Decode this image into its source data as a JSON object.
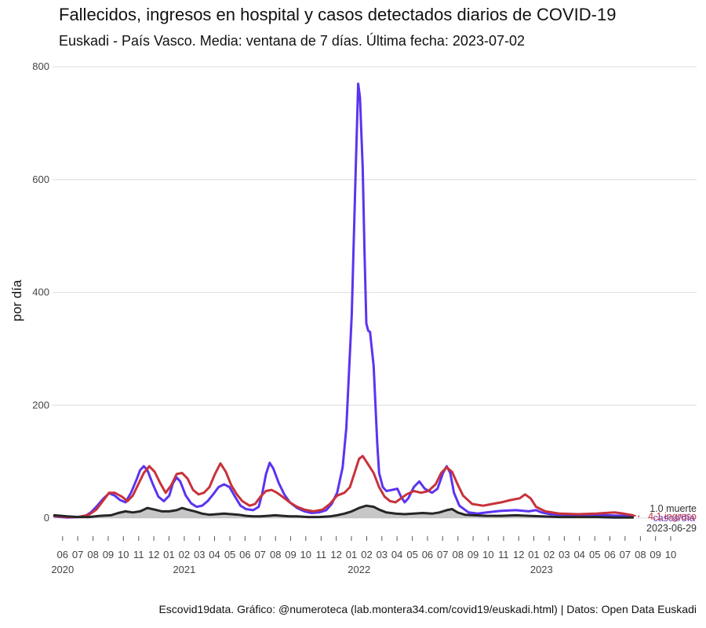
{
  "title": "Fallecidos, ingresos en hospital y casos detectados diarios de COVID-19",
  "subtitle": "Euskadi - País Vasco. Media: ventana de 7 días. Última fecha: 2023-07-02",
  "caption": "Escovid19data. Gráfico: @numeroteca (lab.montera34.com/covid19/euskadi.html) | Datos: Open Data Euskadi",
  "colors": {
    "casos": "#5b34f0",
    "ingresos": "#c8323a",
    "fallecidos": "#262626",
    "area": "#bdbdbd",
    "grid": "#e3e3e3"
  },
  "chart_data": {
    "type": "line",
    "title": "Fallecidos, ingresos en hospital y casos detectados diarios de COVID-19",
    "ylabel": "por día",
    "xlabel": "",
    "ylim": [
      0,
      800
    ],
    "xlim": [
      2020.32,
      2023.85
    ],
    "y_ticks": [
      0,
      200,
      400,
      600,
      800
    ],
    "x_month_ticks": [
      {
        "x": 2020.375,
        "label": "06"
      },
      {
        "x": 2020.458,
        "label": "07"
      },
      {
        "x": 2020.542,
        "label": "08"
      },
      {
        "x": 2020.625,
        "label": "09"
      },
      {
        "x": 2020.708,
        "label": "10"
      },
      {
        "x": 2020.792,
        "label": "11"
      },
      {
        "x": 2020.875,
        "label": "12"
      },
      {
        "x": 2020.958,
        "label": "01"
      },
      {
        "x": 2021.042,
        "label": "02"
      },
      {
        "x": 2021.125,
        "label": "03"
      },
      {
        "x": 2021.208,
        "label": "04"
      },
      {
        "x": 2021.292,
        "label": "05"
      },
      {
        "x": 2021.375,
        "label": "06"
      },
      {
        "x": 2021.458,
        "label": "07"
      },
      {
        "x": 2021.542,
        "label": "08"
      },
      {
        "x": 2021.625,
        "label": "09"
      },
      {
        "x": 2021.708,
        "label": "10"
      },
      {
        "x": 2021.792,
        "label": "11"
      },
      {
        "x": 2021.875,
        "label": "12"
      },
      {
        "x": 2021.958,
        "label": "01"
      },
      {
        "x": 2022.042,
        "label": "02"
      },
      {
        "x": 2022.125,
        "label": "03"
      },
      {
        "x": 2022.208,
        "label": "04"
      },
      {
        "x": 2022.292,
        "label": "05"
      },
      {
        "x": 2022.375,
        "label": "06"
      },
      {
        "x": 2022.458,
        "label": "07"
      },
      {
        "x": 2022.542,
        "label": "08"
      },
      {
        "x": 2022.625,
        "label": "09"
      },
      {
        "x": 2022.708,
        "label": "10"
      },
      {
        "x": 2022.792,
        "label": "11"
      },
      {
        "x": 2022.875,
        "label": "12"
      },
      {
        "x": 2022.958,
        "label": "01"
      },
      {
        "x": 2023.042,
        "label": "02"
      },
      {
        "x": 2023.125,
        "label": "03"
      },
      {
        "x": 2023.208,
        "label": "04"
      },
      {
        "x": 2023.292,
        "label": "05"
      },
      {
        "x": 2023.375,
        "label": "06"
      },
      {
        "x": 2023.458,
        "label": "07"
      },
      {
        "x": 2023.542,
        "label": "08"
      },
      {
        "x": 2023.625,
        "label": "09"
      },
      {
        "x": 2023.708,
        "label": "10"
      }
    ],
    "x_year_ticks": [
      {
        "x": 2020.375,
        "label": "2020"
      },
      {
        "x": 2021.042,
        "label": "2021"
      },
      {
        "x": 2022.0,
        "label": "2022"
      },
      {
        "x": 2023.0,
        "label": "2023"
      }
    ],
    "series": [
      {
        "name": "casos",
        "color": "#5b34f0",
        "points": [
          [
            2020.33,
            3
          ],
          [
            2020.4,
            1
          ],
          [
            2020.46,
            2
          ],
          [
            2020.5,
            4
          ],
          [
            2020.53,
            10
          ],
          [
            2020.56,
            20
          ],
          [
            2020.6,
            35
          ],
          [
            2020.63,
            44
          ],
          [
            2020.66,
            40
          ],
          [
            2020.69,
            32
          ],
          [
            2020.72,
            28
          ],
          [
            2020.75,
            45
          ],
          [
            2020.78,
            68
          ],
          [
            2020.8,
            85
          ],
          [
            2020.82,
            92
          ],
          [
            2020.84,
            85
          ],
          [
            2020.87,
            60
          ],
          [
            2020.9,
            38
          ],
          [
            2020.93,
            30
          ],
          [
            2020.96,
            40
          ],
          [
            2020.98,
            62
          ],
          [
            2021.0,
            72
          ],
          [
            2021.02,
            65
          ],
          [
            2021.05,
            40
          ],
          [
            2021.08,
            26
          ],
          [
            2021.11,
            20
          ],
          [
            2021.14,
            22
          ],
          [
            2021.17,
            30
          ],
          [
            2021.2,
            42
          ],
          [
            2021.23,
            55
          ],
          [
            2021.26,
            60
          ],
          [
            2021.29,
            55
          ],
          [
            2021.32,
            38
          ],
          [
            2021.35,
            22
          ],
          [
            2021.38,
            16
          ],
          [
            2021.42,
            14
          ],
          [
            2021.45,
            20
          ],
          [
            2021.47,
            45
          ],
          [
            2021.49,
            78
          ],
          [
            2021.51,
            98
          ],
          [
            2021.53,
            88
          ],
          [
            2021.56,
            62
          ],
          [
            2021.59,
            42
          ],
          [
            2021.62,
            28
          ],
          [
            2021.66,
            18
          ],
          [
            2021.7,
            12
          ],
          [
            2021.74,
            9
          ],
          [
            2021.78,
            10
          ],
          [
            2021.82,
            14
          ],
          [
            2021.85,
            25
          ],
          [
            2021.88,
            45
          ],
          [
            2021.91,
            90
          ],
          [
            2021.93,
            160
          ],
          [
            2021.96,
            360
          ],
          [
            2021.98,
            600
          ],
          [
            2021.995,
            770
          ],
          [
            2022.005,
            745
          ],
          [
            2022.02,
            620
          ],
          [
            2022.03,
            470
          ],
          [
            2022.04,
            345
          ],
          [
            2022.05,
            332
          ],
          [
            2022.06,
            330
          ],
          [
            2022.08,
            270
          ],
          [
            2022.1,
            130
          ],
          [
            2022.11,
            80
          ],
          [
            2022.13,
            55
          ],
          [
            2022.15,
            48
          ],
          [
            2022.18,
            50
          ],
          [
            2022.21,
            52
          ],
          [
            2022.23,
            38
          ],
          [
            2022.25,
            28
          ],
          [
            2022.27,
            35
          ],
          [
            2022.3,
            55
          ],
          [
            2022.33,
            65
          ],
          [
            2022.36,
            52
          ],
          [
            2022.4,
            45
          ],
          [
            2022.43,
            52
          ],
          [
            2022.46,
            80
          ],
          [
            2022.48,
            92
          ],
          [
            2022.5,
            80
          ],
          [
            2022.52,
            45
          ],
          [
            2022.55,
            22
          ],
          [
            2022.6,
            10
          ],
          [
            2022.65,
            8
          ],
          [
            2022.7,
            10
          ],
          [
            2022.78,
            13
          ],
          [
            2022.86,
            14
          ],
          [
            2022.93,
            12
          ],
          [
            2022.97,
            14
          ],
          [
            2023.0,
            10
          ],
          [
            2023.05,
            7
          ],
          [
            2023.15,
            5
          ],
          [
            2023.25,
            4
          ],
          [
            2023.35,
            5
          ],
          [
            2023.45,
            4
          ],
          [
            2023.5,
            3
          ]
        ]
      },
      {
        "name": "ingresos",
        "color": "#c8323a",
        "points": [
          [
            2020.33,
            4
          ],
          [
            2020.4,
            2
          ],
          [
            2020.46,
            2
          ],
          [
            2020.52,
            6
          ],
          [
            2020.56,
            15
          ],
          [
            2020.6,
            32
          ],
          [
            2020.63,
            45
          ],
          [
            2020.66,
            45
          ],
          [
            2020.7,
            38
          ],
          [
            2020.73,
            30
          ],
          [
            2020.76,
            40
          ],
          [
            2020.79,
            60
          ],
          [
            2020.82,
            80
          ],
          [
            2020.85,
            92
          ],
          [
            2020.88,
            82
          ],
          [
            2020.91,
            62
          ],
          [
            2020.94,
            45
          ],
          [
            2020.97,
            58
          ],
          [
            2021.0,
            78
          ],
          [
            2021.03,
            80
          ],
          [
            2021.06,
            70
          ],
          [
            2021.09,
            50
          ],
          [
            2021.12,
            42
          ],
          [
            2021.15,
            45
          ],
          [
            2021.18,
            55
          ],
          [
            2021.21,
            78
          ],
          [
            2021.24,
            97
          ],
          [
            2021.27,
            82
          ],
          [
            2021.3,
            58
          ],
          [
            2021.33,
            42
          ],
          [
            2021.36,
            30
          ],
          [
            2021.4,
            22
          ],
          [
            2021.43,
            25
          ],
          [
            2021.46,
            38
          ],
          [
            2021.49,
            48
          ],
          [
            2021.52,
            50
          ],
          [
            2021.55,
            45
          ],
          [
            2021.58,
            38
          ],
          [
            2021.62,
            28
          ],
          [
            2021.66,
            20
          ],
          [
            2021.7,
            15
          ],
          [
            2021.75,
            12
          ],
          [
            2021.8,
            15
          ],
          [
            2021.84,
            25
          ],
          [
            2021.88,
            40
          ],
          [
            2021.92,
            45
          ],
          [
            2021.95,
            55
          ],
          [
            2021.98,
            85
          ],
          [
            2022.0,
            105
          ],
          [
            2022.02,
            110
          ],
          [
            2022.05,
            95
          ],
          [
            2022.08,
            80
          ],
          [
            2022.11,
            55
          ],
          [
            2022.14,
            38
          ],
          [
            2022.17,
            30
          ],
          [
            2022.2,
            28
          ],
          [
            2022.23,
            35
          ],
          [
            2022.26,
            42
          ],
          [
            2022.3,
            48
          ],
          [
            2022.34,
            45
          ],
          [
            2022.38,
            48
          ],
          [
            2022.42,
            60
          ],
          [
            2022.45,
            80
          ],
          [
            2022.48,
            90
          ],
          [
            2022.51,
            82
          ],
          [
            2022.54,
            60
          ],
          [
            2022.57,
            40
          ],
          [
            2022.62,
            25
          ],
          [
            2022.68,
            22
          ],
          [
            2022.73,
            25
          ],
          [
            2022.78,
            28
          ],
          [
            2022.83,
            32
          ],
          [
            2022.88,
            35
          ],
          [
            2022.91,
            42
          ],
          [
            2022.94,
            35
          ],
          [
            2022.97,
            20
          ],
          [
            2023.02,
            12
          ],
          [
            2023.1,
            8
          ],
          [
            2023.2,
            7
          ],
          [
            2023.3,
            8
          ],
          [
            2023.4,
            10
          ],
          [
            2023.45,
            8
          ],
          [
            2023.5,
            5
          ]
        ]
      },
      {
        "name": "fallecidos",
        "color": "#262626",
        "points": [
          [
            2020.33,
            5
          ],
          [
            2020.4,
            3
          ],
          [
            2020.46,
            2
          ],
          [
            2020.52,
            2
          ],
          [
            2020.58,
            4
          ],
          [
            2020.64,
            5
          ],
          [
            2020.68,
            9
          ],
          [
            2020.72,
            12
          ],
          [
            2020.76,
            10
          ],
          [
            2020.8,
            12
          ],
          [
            2020.84,
            18
          ],
          [
            2020.88,
            15
          ],
          [
            2020.92,
            12
          ],
          [
            2020.96,
            12
          ],
          [
            2021.0,
            14
          ],
          [
            2021.03,
            18
          ],
          [
            2021.06,
            15
          ],
          [
            2021.1,
            12
          ],
          [
            2021.14,
            8
          ],
          [
            2021.18,
            6
          ],
          [
            2021.22,
            7
          ],
          [
            2021.26,
            8
          ],
          [
            2021.3,
            7
          ],
          [
            2021.34,
            6
          ],
          [
            2021.38,
            4
          ],
          [
            2021.42,
            3
          ],
          [
            2021.46,
            3
          ],
          [
            2021.5,
            4
          ],
          [
            2021.54,
            5
          ],
          [
            2021.58,
            4
          ],
          [
            2021.62,
            3
          ],
          [
            2021.66,
            3
          ],
          [
            2021.72,
            2
          ],
          [
            2021.78,
            2
          ],
          [
            2021.84,
            3
          ],
          [
            2021.88,
            5
          ],
          [
            2021.92,
            8
          ],
          [
            2021.96,
            12
          ],
          [
            2022.0,
            18
          ],
          [
            2022.04,
            22
          ],
          [
            2022.08,
            20
          ],
          [
            2022.11,
            15
          ],
          [
            2022.15,
            10
          ],
          [
            2022.2,
            8
          ],
          [
            2022.25,
            7
          ],
          [
            2022.3,
            8
          ],
          [
            2022.35,
            9
          ],
          [
            2022.4,
            8
          ],
          [
            2022.44,
            10
          ],
          [
            2022.48,
            14
          ],
          [
            2022.51,
            16
          ],
          [
            2022.54,
            10
          ],
          [
            2022.58,
            6
          ],
          [
            2022.63,
            5
          ],
          [
            2022.7,
            4
          ],
          [
            2022.78,
            4
          ],
          [
            2022.86,
            5
          ],
          [
            2022.93,
            4
          ],
          [
            2023.0,
            3
          ],
          [
            2023.1,
            2
          ],
          [
            2023.2,
            2
          ],
          [
            2023.3,
            2
          ],
          [
            2023.4,
            1
          ],
          [
            2023.5,
            1
          ]
        ]
      }
    ],
    "annotations": {
      "fallecidos_label": "1.0 muerte",
      "ingresos_label": "4.1 ingreso",
      "casos_label": "casos/día",
      "date_label": "2023-06-29"
    }
  }
}
